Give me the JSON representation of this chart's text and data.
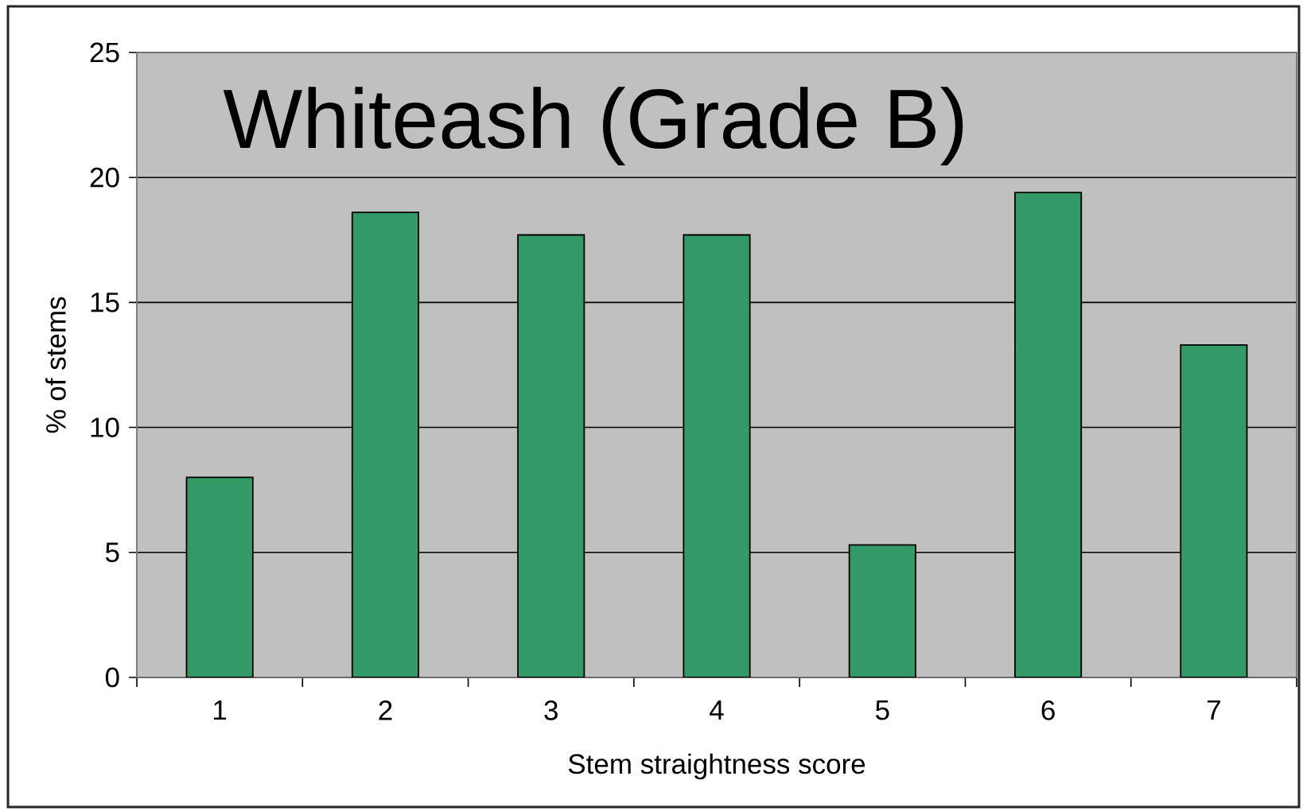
{
  "chart_data": {
    "type": "bar",
    "title": "Whiteash (Grade B)",
    "xlabel": "Stem straightness score",
    "ylabel": "% of stems",
    "categories": [
      "1",
      "2",
      "3",
      "4",
      "5",
      "6",
      "7"
    ],
    "values": [
      8.0,
      18.6,
      17.7,
      17.7,
      5.3,
      19.4,
      13.3
    ],
    "color": "#339966",
    "ylim": [
      0,
      25
    ],
    "yticks": [
      0,
      5,
      10,
      15,
      20,
      25
    ],
    "grid": "y"
  }
}
